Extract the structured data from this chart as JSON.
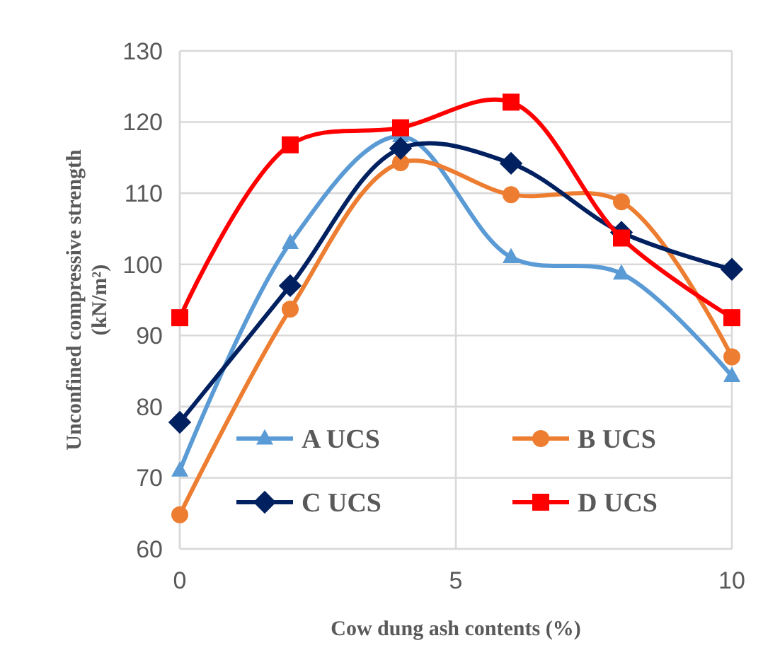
{
  "chart_data": {
    "type": "line",
    "xlabel": "Cow dung ash contents (%)",
    "ylabel": "Unconfined compressive strength (kN/m²)",
    "x": [
      0,
      2,
      4,
      6,
      8,
      10
    ],
    "xlim": [
      0,
      10
    ],
    "xticks": [
      0,
      5,
      10
    ],
    "ylim": [
      60,
      130
    ],
    "yticks": [
      60,
      70,
      80,
      90,
      100,
      110,
      120,
      130
    ],
    "grid": true,
    "legend": "bottom",
    "line_style": "solid",
    "series": [
      {
        "name": "A UCS",
        "color": "#5b9bd5",
        "marker": "triangle",
        "values": [
          71,
          103,
          118,
          101,
          98.7,
          84.3
        ]
      },
      {
        "name": "B UCS",
        "color": "#ed7d31",
        "marker": "circle",
        "values": [
          64.8,
          93.7,
          114.3,
          109.8,
          108.8,
          87
        ]
      },
      {
        "name": "C UCS",
        "color": "#002060",
        "marker": "diamond",
        "values": [
          77.8,
          97,
          116.3,
          114.2,
          104.5,
          99.3
        ]
      },
      {
        "name": "D UCS",
        "color": "#ff0000",
        "marker": "square",
        "values": [
          92.5,
          116.8,
          119.2,
          122.8,
          103.7,
          92.5
        ]
      }
    ]
  }
}
